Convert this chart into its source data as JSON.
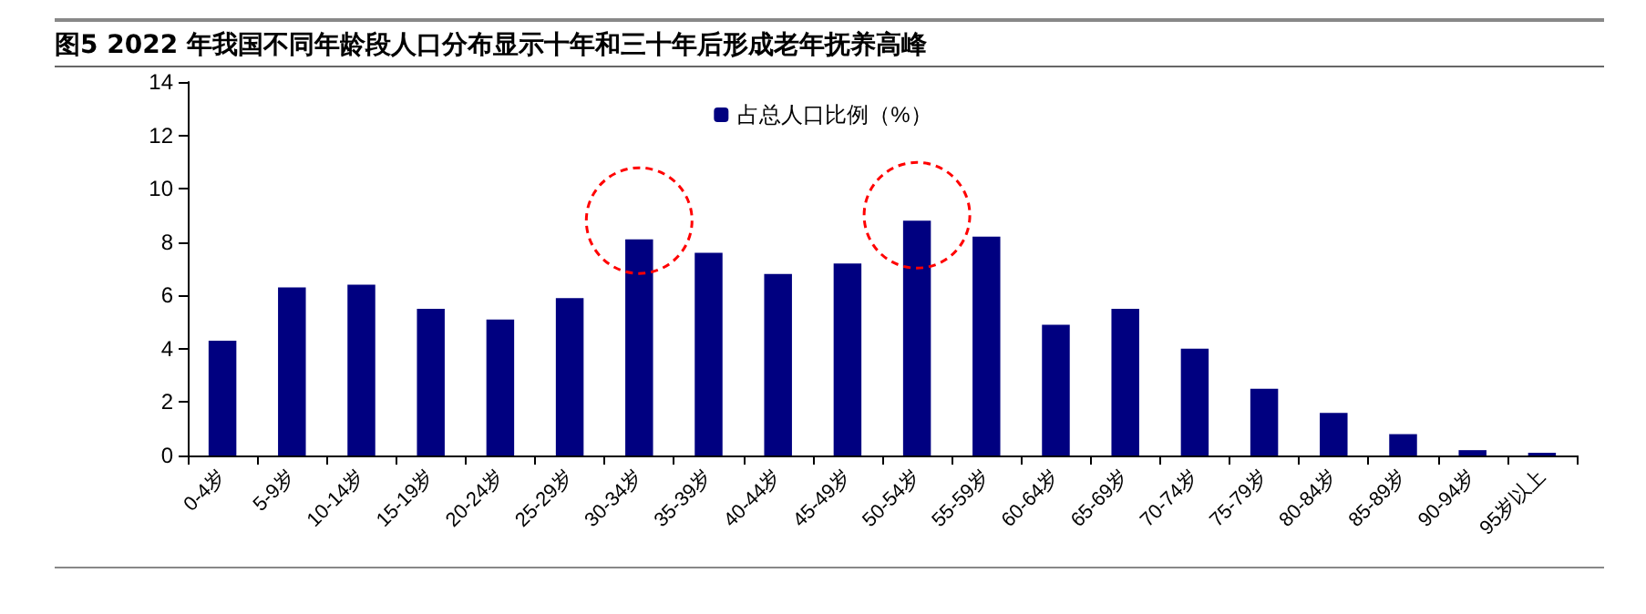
{
  "chart_data": {
    "type": "bar",
    "title": "图5  2022 年我国不同年龄段人口分布显示十年和三十年后形成老年抚养高峰",
    "categories": [
      "0-4岁",
      "5-9岁",
      "10-14岁",
      "15-19岁",
      "20-24岁",
      "25-29岁",
      "30-34岁",
      "35-39岁",
      "40-44岁",
      "45-49岁",
      "50-54岁",
      "55-59岁",
      "60-64岁",
      "65-69岁",
      "70-74岁",
      "75-79岁",
      "80-84岁",
      "85-89岁",
      "90-94岁",
      "95岁以上"
    ],
    "series": [
      {
        "name": "占总人口比例（%）",
        "color": "#000080",
        "values": [
          4.3,
          6.3,
          6.4,
          5.5,
          5.1,
          5.9,
          8.1,
          7.6,
          6.8,
          7.2,
          8.8,
          8.2,
          4.9,
          5.5,
          4.0,
          2.5,
          1.6,
          0.8,
          0.2,
          0.1
        ]
      }
    ],
    "ylim": [
      0,
      14
    ],
    "yticks": [
      0,
      2,
      4,
      6,
      8,
      10,
      12,
      14
    ],
    "grid": false,
    "legend": "top"
  }
}
